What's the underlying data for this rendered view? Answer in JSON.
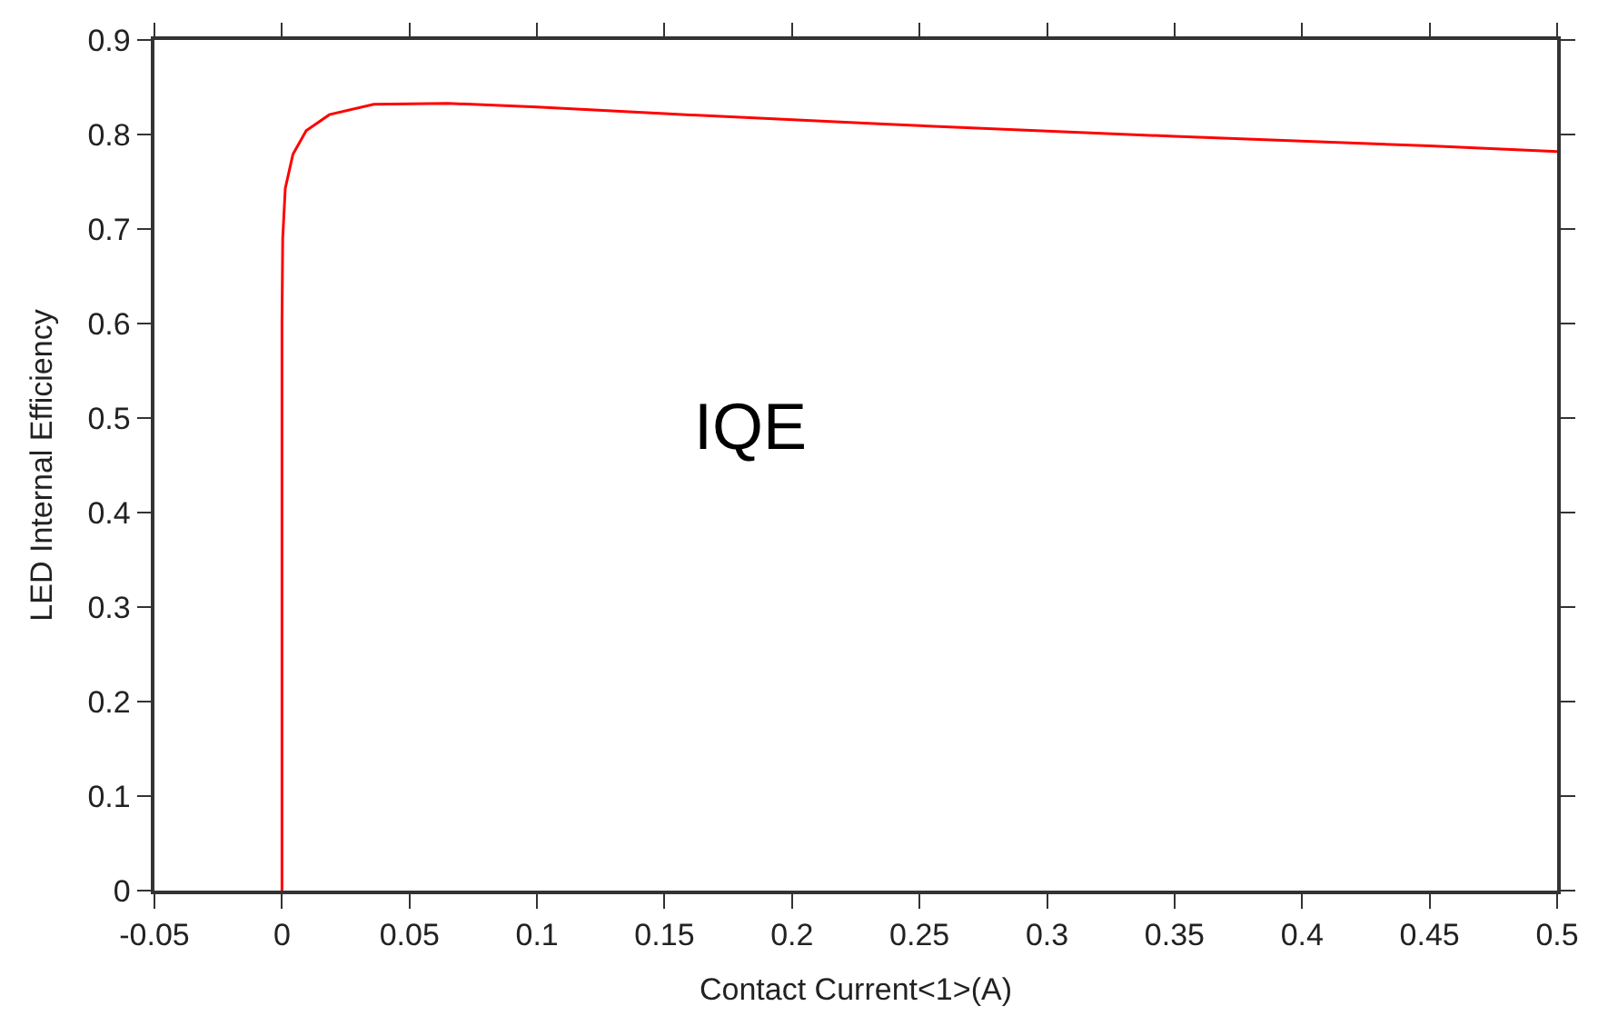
{
  "chart_data": {
    "type": "line",
    "xlabel": "Contact Current<1>(A)",
    "ylabel": "LED Internal Efficiency",
    "annotations": [
      "IQE"
    ],
    "series": [
      {
        "color": "#ff0000",
        "x": [
          0,
          0,
          0.0003,
          0.0013,
          0.0043,
          0.0095,
          0.0186,
          0.036,
          0.065,
          0.1,
          0.15,
          0.236,
          0.35,
          0.45,
          0.5
        ],
        "values": [
          0,
          0.6,
          0.69,
          0.743,
          0.779,
          0.804,
          0.821,
          0.832,
          0.833,
          0.829,
          0.822,
          0.811,
          0.798,
          0.788,
          0.782
        ]
      }
    ],
    "xlim": [
      -0.05,
      0.5
    ],
    "xticks": [
      -0.05,
      0,
      0.05,
      0.1,
      0.15,
      0.2,
      0.25,
      0.3,
      0.35,
      0.4,
      0.45,
      0.5
    ],
    "ylim": [
      0,
      0.9
    ],
    "yticks": [
      0,
      0.1,
      0.2,
      0.3,
      0.4,
      0.5,
      0.6,
      0.7,
      0.8,
      0.9
    ],
    "marker": "none",
    "line_style": "solid"
  }
}
